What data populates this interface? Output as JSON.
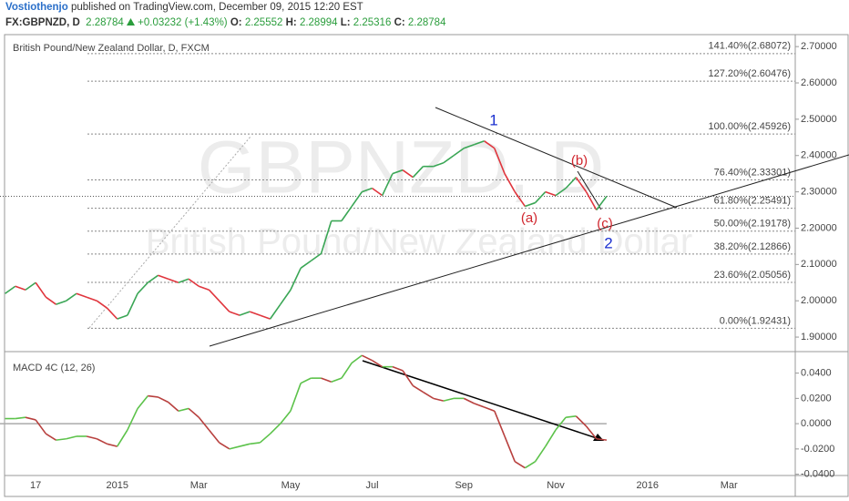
{
  "header": {
    "author": "Vostiothenjo",
    "published": "published on TradingView.com, December 09, 2015 12:20 EST",
    "symbol": "FX:GBPNZD, D",
    "last": "2.28784",
    "change": "+0.03232 (+1.43%)",
    "ohlc": [
      {
        "label": "O:",
        "value": "2.25552"
      },
      {
        "label": "H:",
        "value": "2.28994"
      },
      {
        "label": "L:",
        "value": "2.25316"
      },
      {
        "label": "C:",
        "value": "2.28784"
      }
    ]
  },
  "chart_data": [
    {
      "type": "line",
      "title": "British Pound/New Zealand Dollar, D, FXCM",
      "watermark": "GBPNZD, D",
      "watermark_subtitle": "British Pound/New Zealand Dollar",
      "up_color": "#3aa655",
      "down_color": "#e0353d",
      "values": [
        2.02,
        2.04,
        2.03,
        2.05,
        2.01,
        1.99,
        2.0,
        2.02,
        2.01,
        2.0,
        1.98,
        1.95,
        1.96,
        2.02,
        2.05,
        2.07,
        2.06,
        2.05,
        2.06,
        2.04,
        2.03,
        2.0,
        1.97,
        1.96,
        1.97,
        1.96,
        1.95,
        1.99,
        2.03,
        2.09,
        2.11,
        2.13,
        2.22,
        2.22,
        2.26,
        2.3,
        2.31,
        2.29,
        2.35,
        2.36,
        2.34,
        2.37,
        2.37,
        2.38,
        2.4,
        2.42,
        2.43,
        2.44,
        2.42,
        2.35,
        2.3,
        2.26,
        2.27,
        2.3,
        2.29,
        2.31,
        2.34,
        2.3,
        2.25,
        2.28784,
        null,
        null,
        null,
        null,
        null,
        null,
        null,
        null,
        null,
        null,
        null,
        null,
        null,
        null,
        null,
        null,
        null,
        null
      ],
      "ylim": [
        1.86,
        2.733
      ],
      "yticks": [
        {
          "value": 1.9,
          "label": "1.90000"
        },
        {
          "value": 2.0,
          "label": "2.00000"
        },
        {
          "value": 2.1,
          "label": "2.10000"
        },
        {
          "value": 2.2,
          "label": "2.20000"
        },
        {
          "value": 2.3,
          "label": "2.30000"
        },
        {
          "value": 2.4,
          "label": "2.40000"
        },
        {
          "value": 2.5,
          "label": "2.50000"
        },
        {
          "value": 2.6,
          "label": "2.60000"
        },
        {
          "value": 2.7,
          "label": "2.70000"
        }
      ],
      "levels": [
        {
          "value": 2.68072,
          "label": "141.40%(2.68072)"
        },
        {
          "value": 2.60476,
          "label": "127.20%(2.60476)"
        },
        {
          "value": 2.45926,
          "label": "100.00%(2.45926)"
        },
        {
          "value": 2.33301,
          "label": "76.40%(2.33301)"
        },
        {
          "value": 2.25491,
          "label": "61.80%(2.25491)"
        },
        {
          "value": 2.19178,
          "label": "50.00%(2.19178)"
        },
        {
          "value": 2.12866,
          "label": "38.20%(2.12866)"
        },
        {
          "value": 2.05056,
          "label": "23.60%(2.05056)"
        },
        {
          "value": 1.92431,
          "label": "0.00%(1.92431)"
        }
      ],
      "annotations": [
        "1",
        "2",
        "(a)",
        "(b)",
        "(c)"
      ]
    },
    {
      "type": "line",
      "title": "MACD 4C (12, 26)",
      "up_color": "#5cc24a",
      "down_color": "#b8403e",
      "categories": [
        null,
        null,
        null,
        "17",
        null,
        null,
        null,
        null,
        null,
        null,
        null,
        "2015",
        null,
        null,
        null,
        null,
        null,
        null,
        null,
        "Mar",
        null,
        null,
        null,
        null,
        null,
        null,
        null,
        null,
        "May",
        null,
        null,
        null,
        null,
        null,
        null,
        null,
        "Jul",
        null,
        null,
        null,
        null,
        null,
        null,
        null,
        null,
        "Sep",
        null,
        null,
        null,
        null,
        null,
        null,
        null,
        null,
        "Nov",
        null,
        null,
        null,
        null,
        null,
        null,
        null,
        null,
        "2016",
        null,
        null,
        null,
        null,
        null,
        null,
        null,
        "Mar",
        null,
        null,
        null,
        null,
        null,
        null
      ],
      "values": [
        0.004,
        0.004,
        0.005,
        0.003,
        -0.008,
        -0.013,
        -0.012,
        -0.01,
        -0.01,
        -0.012,
        -0.016,
        -0.018,
        -0.005,
        0.012,
        0.022,
        0.021,
        0.017,
        0.01,
        0.012,
        0.005,
        -0.005,
        -0.015,
        -0.02,
        -0.018,
        -0.016,
        -0.015,
        -0.008,
        0,
        0.01,
        0.032,
        0.036,
        0.036,
        0.033,
        0.036,
        0.048,
        0.054,
        0.05,
        0.045,
        0.045,
        0.042,
        0.03,
        0.025,
        0.02,
        0.018,
        0.02,
        0.02,
        0.016,
        0.013,
        0.01,
        -0.01,
        -0.03,
        -0.035,
        -0.03,
        -0.018,
        -0.005,
        0.005,
        0.006,
        -0.002,
        -0.012,
        -0.013,
        null,
        null,
        null,
        null,
        null,
        null,
        null,
        null,
        null,
        null,
        null,
        null,
        null,
        null,
        null,
        null,
        null,
        null
      ],
      "ylim": [
        -0.041,
        0.057
      ],
      "yticks": [
        {
          "value": -0.04,
          "label": "-0.0400"
        },
        {
          "value": -0.02,
          "label": "-0.0200"
        },
        {
          "value": 0,
          "label": "0.0000"
        },
        {
          "value": 0.02,
          "label": "0.0200"
        },
        {
          "value": 0.04,
          "label": "0.0400"
        }
      ],
      "baseline": 0
    }
  ]
}
